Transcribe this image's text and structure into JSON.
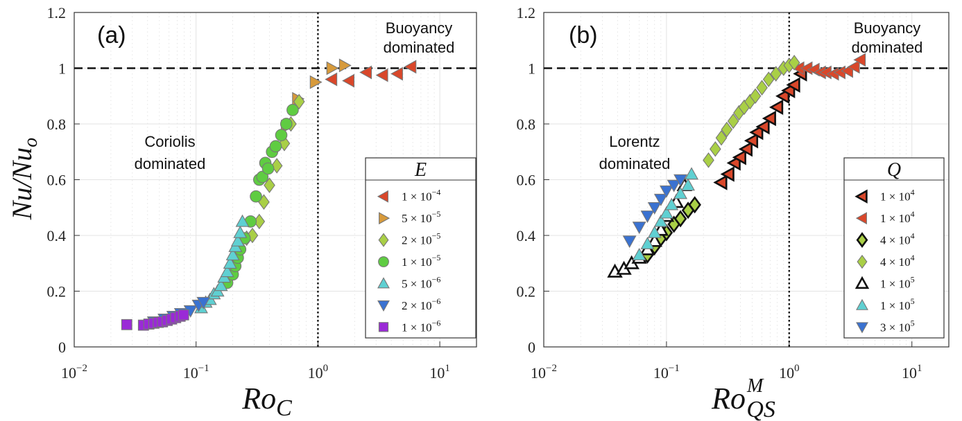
{
  "chart_data": [
    {
      "type": "scatter",
      "panel_label": "(a)",
      "xlabel": "Ro_C",
      "xlabel_main": "Ro",
      "xlabel_sub": "C",
      "ylabel": "Nu/Nu_o",
      "xscale": "log",
      "xlim": [
        0.01,
        20
      ],
      "ylim": [
        0,
        1.2
      ],
      "yticks": [
        "0",
        "0.2",
        "0.4",
        "0.6",
        "0.8",
        "1",
        "1.2"
      ],
      "xticks": [
        {
          "base": "10",
          "exp": "-2"
        },
        {
          "base": "10",
          "exp": "-1"
        },
        {
          "base": "10",
          "exp": "0"
        },
        {
          "base": "10",
          "exp": "1"
        }
      ],
      "hline": 1,
      "vline": 1,
      "annotations": [
        {
          "text": "Coriolis",
          "where": "left-middle"
        },
        {
          "text": "dominated",
          "where": "left-middle"
        },
        {
          "text": "Buoyancy",
          "where": "top-right"
        },
        {
          "text": "dominated",
          "where": "top-right"
        }
      ],
      "legend_title": "E",
      "legend_position": "bottom-right",
      "series": [
        {
          "name": "1 × 10^-4",
          "label_main": "1 × 10",
          "label_exp": "−4",
          "marker": "triangle-left",
          "color": "#d9472a",
          "filled": true,
          "x": [
            1.3,
            1.8,
            2.5,
            3.4,
            4.5,
            5.8
          ],
          "y": [
            0.96,
            0.955,
            0.985,
            0.975,
            0.98,
            1.005
          ]
        },
        {
          "name": "5 × 10^-5",
          "label_main": "5 × 10",
          "label_exp": "−5",
          "marker": "triangle-right",
          "color": "#d79a3b",
          "filled": true,
          "x": [
            0.55,
            0.68,
            0.95,
            1.3,
            1.65
          ],
          "y": [
            0.79,
            0.89,
            0.95,
            1.0,
            1.01
          ]
        },
        {
          "name": "2 × 10^-5",
          "label_main": "2 × 10",
          "label_exp": "−5",
          "marker": "diamond",
          "color": "#a9cf46",
          "filled": true,
          "x": [
            0.26,
            0.29,
            0.33,
            0.36,
            0.4,
            0.46,
            0.53,
            0.6,
            0.7
          ],
          "y": [
            0.39,
            0.4,
            0.45,
            0.52,
            0.58,
            0.65,
            0.73,
            0.8,
            0.88
          ]
        },
        {
          "name": "1 × 10^-5",
          "label_main": "1 × 10",
          "label_exp": "−5",
          "marker": "circle",
          "color": "#5fcc42",
          "filled": true,
          "x": [
            0.18,
            0.2,
            0.21,
            0.22,
            0.23,
            0.25,
            0.28,
            0.31,
            0.33,
            0.35,
            0.37,
            0.39,
            0.42,
            0.45,
            0.5,
            0.55,
            0.62
          ],
          "y": [
            0.23,
            0.26,
            0.29,
            0.32,
            0.35,
            0.39,
            0.45,
            0.54,
            0.6,
            0.61,
            0.66,
            0.64,
            0.7,
            0.72,
            0.76,
            0.8,
            0.85
          ]
        },
        {
          "name": "5 × 10^-6",
          "label_main": "5 × 10",
          "label_exp": "−6",
          "marker": "triangle-up",
          "color": "#5fd0d2",
          "filled": true,
          "x": [
            0.11,
            0.12,
            0.13,
            0.14,
            0.15,
            0.16,
            0.17,
            0.18,
            0.19,
            0.2,
            0.21,
            0.22,
            0.23,
            0.24
          ],
          "y": [
            0.14,
            0.16,
            0.17,
            0.19,
            0.2,
            0.22,
            0.25,
            0.27,
            0.3,
            0.33,
            0.36,
            0.38,
            0.41,
            0.45
          ]
        },
        {
          "name": "2 × 10^-6",
          "label_main": "2 × 10",
          "label_exp": "−6",
          "marker": "triangle-down",
          "color": "#3a72d1",
          "filled": true,
          "x": [
            0.045,
            0.055,
            0.065,
            0.075,
            0.09,
            0.105,
            0.115
          ],
          "y": [
            0.09,
            0.1,
            0.11,
            0.12,
            0.13,
            0.15,
            0.16
          ]
        },
        {
          "name": "1 × 10^-6",
          "label_main": "1 × 10",
          "label_exp": "−6",
          "marker": "square",
          "color": "#9a2ad6",
          "filled": true,
          "x": [
            0.027,
            0.037,
            0.041,
            0.045,
            0.049,
            0.053,
            0.058,
            0.063,
            0.068,
            0.074,
            0.079
          ],
          "y": [
            0.08,
            0.078,
            0.082,
            0.085,
            0.088,
            0.09,
            0.095,
            0.1,
            0.105,
            0.11,
            0.115
          ]
        }
      ]
    },
    {
      "type": "scatter",
      "panel_label": "(b)",
      "xlabel": "Ro_QS^M",
      "xlabel_main": "Ro",
      "xlabel_sub": "QS",
      "xlabel_sup": "M",
      "ylabel": "Nu/Nu_o",
      "xscale": "log",
      "xlim": [
        0.01,
        20
      ],
      "ylim": [
        0,
        1.2
      ],
      "yticks": [
        "0",
        "0.2",
        "0.4",
        "0.6",
        "0.8",
        "1",
        "1.2"
      ],
      "xticks": [
        {
          "base": "10",
          "exp": "-2"
        },
        {
          "base": "10",
          "exp": "-1"
        },
        {
          "base": "10",
          "exp": "0"
        },
        {
          "base": "10",
          "exp": "1"
        }
      ],
      "hline": 1,
      "vline": 1,
      "annotations": [
        {
          "text": "Lorentz",
          "where": "left-middle"
        },
        {
          "text": "dominated",
          "where": "left-middle"
        },
        {
          "text": "Buoyancy",
          "where": "top-right"
        },
        {
          "text": "dominated",
          "where": "top-right"
        }
      ],
      "legend_title": "Q",
      "legend_position": "bottom-right",
      "series": [
        {
          "name": "1 × 10^4 (outlined)",
          "label_main": "1 × 10",
          "label_exp": "4",
          "marker": "triangle-left",
          "color": "#d9472a",
          "filled": true,
          "thick_edge": true,
          "x": [
            0.28,
            0.32,
            0.36,
            0.4,
            0.45,
            0.5,
            0.55,
            0.62,
            0.7,
            0.8,
            0.9,
            1.0,
            1.1,
            1.25
          ],
          "y": [
            0.59,
            0.62,
            0.66,
            0.68,
            0.71,
            0.74,
            0.77,
            0.79,
            0.82,
            0.86,
            0.9,
            0.92,
            0.94,
            0.98
          ]
        },
        {
          "name": "1 × 10^4",
          "label_main": "1 × 10",
          "label_exp": "4",
          "marker": "triangle-left",
          "color": "#d9472a",
          "filled": true,
          "x": [
            1.2,
            1.4,
            1.6,
            1.8,
            2.0,
            2.3,
            2.6,
            3.0,
            3.4,
            3.8
          ],
          "y": [
            1.0,
            1.0,
            0.995,
            0.985,
            0.985,
            0.98,
            0.985,
            0.99,
            1.005,
            1.03
          ]
        },
        {
          "name": "4 × 10^4 (outlined)",
          "label_main": "4 × 10",
          "label_exp": "4",
          "marker": "diamond",
          "color": "#a9cf46",
          "filled": true,
          "thick_edge": true,
          "x": [
            0.07,
            0.08,
            0.09,
            0.1,
            0.115,
            0.13,
            0.15,
            0.17
          ],
          "y": [
            0.33,
            0.36,
            0.39,
            0.41,
            0.44,
            0.46,
            0.49,
            0.51
          ]
        },
        {
          "name": "4 × 10^4",
          "label_main": "4 × 10",
          "label_exp": "4",
          "marker": "diamond",
          "color": "#a9cf46",
          "filled": true,
          "x": [
            0.22,
            0.25,
            0.28,
            0.31,
            0.35,
            0.39,
            0.43,
            0.48,
            0.53,
            0.6,
            0.68,
            0.78,
            0.9,
            1.0,
            1.1
          ],
          "y": [
            0.67,
            0.71,
            0.75,
            0.78,
            0.81,
            0.84,
            0.86,
            0.88,
            0.9,
            0.93,
            0.96,
            0.98,
            1.0,
            1.01,
            1.02
          ]
        },
        {
          "name": "1 × 10^5 (outlined)",
          "label_main": "1 × 10",
          "label_exp": "5",
          "marker": "triangle-up",
          "color": "#5fd0d2",
          "filled": false,
          "thick_edge": true,
          "x": [
            0.038,
            0.045,
            0.052,
            0.06,
            0.07,
            0.08,
            0.09,
            0.1,
            0.12,
            0.14
          ],
          "y": [
            0.27,
            0.28,
            0.3,
            0.32,
            0.35,
            0.38,
            0.42,
            0.47,
            0.52,
            0.58
          ]
        },
        {
          "name": "1 × 10^5",
          "label_main": "1 × 10",
          "label_exp": "5",
          "marker": "triangle-up",
          "color": "#5fd0d2",
          "filled": true,
          "x": [
            0.06,
            0.07,
            0.08,
            0.09,
            0.1,
            0.11,
            0.13,
            0.15,
            0.16
          ],
          "y": [
            0.33,
            0.37,
            0.41,
            0.45,
            0.48,
            0.51,
            0.55,
            0.58,
            0.62
          ]
        },
        {
          "name": "3 × 10^5",
          "label_main": "3 × 10",
          "label_exp": "5",
          "marker": "triangle-down",
          "color": "#3a72d1",
          "filled": true,
          "x": [
            0.05,
            0.06,
            0.07,
            0.08,
            0.09,
            0.1,
            0.115,
            0.13
          ],
          "y": [
            0.38,
            0.43,
            0.47,
            0.5,
            0.53,
            0.56,
            0.58,
            0.6
          ]
        }
      ]
    }
  ]
}
